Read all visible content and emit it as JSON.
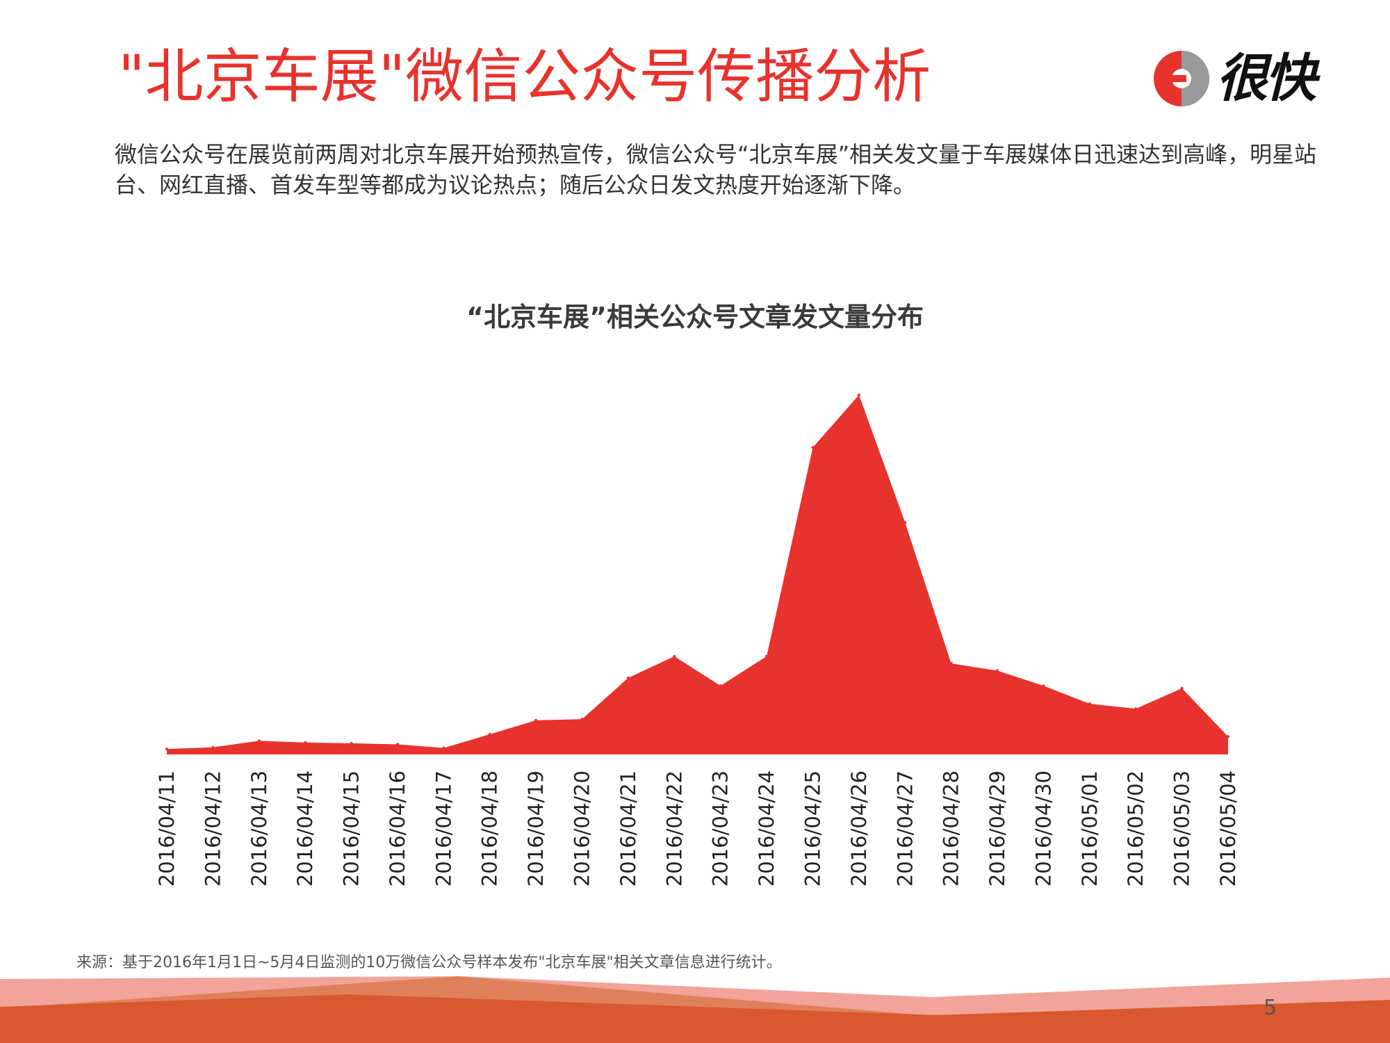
{
  "header": {
    "title": "\"北京车展\"微信公众号传播分析",
    "logo_text": "很快"
  },
  "description": "微信公众号在展览前两周对北京车展开始预热宣传，微信公众号“北京车展”相关发文量于车展媒体日迅速达到高峰，明星站台、网红直播、首发车型等都成为议论热点；随后公众日发文热度开始逐渐下降。",
  "chart_data": {
    "type": "area",
    "title": "“北京车展”相关公众号文章发文量分布",
    "xlabel": "",
    "ylabel": "",
    "x": [
      "2016/04/11",
      "2016/04/12",
      "2016/04/13",
      "2016/04/14",
      "2016/04/15",
      "2016/04/16",
      "2016/04/17",
      "2016/04/18",
      "2016/04/19",
      "2016/04/20",
      "2016/04/21",
      "2016/04/22",
      "2016/04/23",
      "2016/04/24",
      "2016/04/25",
      "2016/04/26",
      "2016/04/27",
      "2016/04/28",
      "2016/04/29",
      "2016/04/30",
      "2016/05/01",
      "2016/05/02",
      "2016/05/03",
      "2016/05/04"
    ],
    "values": [
      1.5,
      2,
      3.8,
      3.3,
      3.1,
      2.8,
      1.8,
      5.6,
      9.5,
      9.8,
      21.3,
      27.3,
      19.1,
      27.3,
      85.4,
      100,
      64.5,
      25.3,
      23.3,
      19.1,
      14.1,
      12.7,
      18.4,
      5
    ],
    "ylim": [
      0,
      100
    ],
    "grid": false,
    "color": "#e8322d"
  },
  "source": "来源：基于2016年1月1日~5月4日监测的10万微信公众号样本发布\"北京车展\"相关文章信息进行统计。",
  "page_number": "5",
  "colors": {
    "title": "#e8322d",
    "area": "#e8322d",
    "footer_light": "#f2a39a",
    "footer_mid": "#e0805a",
    "footer_dark": "#d9582f",
    "logo_gray": "#9a9a9a"
  }
}
